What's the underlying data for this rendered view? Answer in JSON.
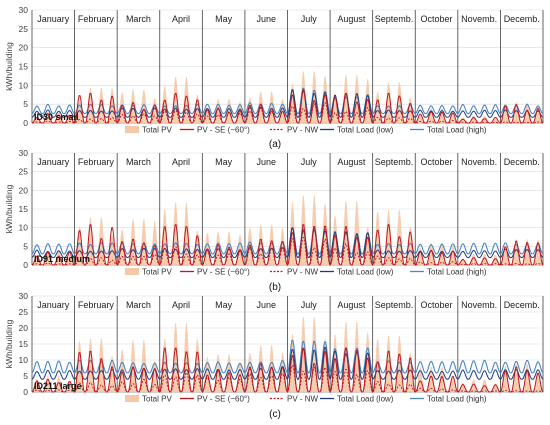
{
  "chart_data": [
    {
      "type": "line",
      "panel_label": "ID30 small",
      "caption": "(a)",
      "ylabel": "kWh/building",
      "ylim": [
        0,
        30
      ],
      "yticks": [
        0,
        5,
        10,
        15,
        20,
        25,
        30
      ],
      "grid": true,
      "legend_position": "bottom",
      "categories": [
        "January",
        "February",
        "March",
        "April",
        "May",
        "June",
        "July",
        "August",
        "Septemb.",
        "October",
        "Novemb.",
        "Decemb."
      ],
      "series": [
        {
          "name": "Total PV",
          "peaks": [
            3,
            9.5,
            9,
            12.5,
            6.5,
            8.5,
            14,
            13,
            11,
            4,
            2,
            5.5
          ]
        },
        {
          "name": "PV - SE (~60°)",
          "peaks": [
            2.5,
            8,
            5.5,
            8,
            4,
            5,
            9,
            8,
            8,
            3,
            1.5,
            5
          ]
        },
        {
          "name": "PV - NW",
          "peaks": [
            0.5,
            1.5,
            2.5,
            4,
            3,
            4,
            6,
            4.5,
            2,
            0.8,
            0.3,
            0.3
          ]
        },
        {
          "name": "Total Load (low)",
          "base": [
            1.5,
            1.5,
            1.5,
            1.5,
            1.5,
            1.5,
            1.5,
            1.5,
            1.5,
            1.5,
            1.5,
            1.5
          ],
          "peaks": [
            3.5,
            3.5,
            4,
            4,
            4,
            4.5,
            9,
            8,
            3.5,
            3.5,
            3.5,
            3.5
          ]
        },
        {
          "name": "Total Load (high)",
          "base": [
            2.5,
            2.5,
            2.5,
            2.5,
            2.5,
            2.5,
            2.5,
            2.5,
            2.5,
            2.5,
            2.5,
            2.5
          ],
          "peaks": [
            5,
            5,
            5,
            5,
            5,
            5.5,
            9.5,
            8,
            5,
            5,
            5,
            5
          ]
        }
      ]
    },
    {
      "type": "line",
      "panel_label": "ID91 medium",
      "caption": "(b)",
      "ylabel": "kWh/building",
      "ylim": [
        0,
        30
      ],
      "yticks": [
        0,
        5,
        10,
        15,
        20,
        25,
        30
      ],
      "grid": true,
      "legend_position": "bottom",
      "categories": [
        "January",
        "February",
        "March",
        "April",
        "May",
        "June",
        "July",
        "August",
        "Septemb.",
        "October",
        "Novemb.",
        "Decemb."
      ],
      "series": [
        {
          "name": "Total PV",
          "peaks": [
            4,
            13,
            12.5,
            17,
            9,
            11,
            19,
            17.5,
            15,
            6,
            3,
            7
          ]
        },
        {
          "name": "PV - SE (~60°)",
          "peaks": [
            3.5,
            11,
            7,
            11,
            5.5,
            7,
            11,
            10.5,
            11,
            4,
            2,
            6.5
          ]
        },
        {
          "name": "PV - NW",
          "peaks": [
            0.5,
            2,
            3,
            5,
            4,
            5,
            8,
            6,
            2.5,
            1,
            0.4,
            0.4
          ]
        },
        {
          "name": "Total Load (low)",
          "base": [
            2,
            2,
            2,
            2,
            2,
            2,
            2,
            2,
            2,
            2,
            2,
            2
          ],
          "peaks": [
            4,
            4,
            4.5,
            4.5,
            4.5,
            5,
            10.5,
            9,
            4,
            4,
            4,
            4.5
          ]
        },
        {
          "name": "Total Load (high)",
          "base": [
            3,
            3,
            3,
            3,
            3,
            3,
            3,
            3,
            3,
            3,
            3,
            3
          ],
          "peaks": [
            6,
            6,
            6,
            6,
            6,
            6.5,
            11,
            9.5,
            6,
            6,
            6,
            6
          ]
        }
      ]
    },
    {
      "type": "line",
      "panel_label": "ID211 large",
      "caption": "(c)",
      "ylabel": "kWh/building",
      "ylim": [
        0,
        30
      ],
      "yticks": [
        0,
        5,
        10,
        15,
        20,
        25,
        30
      ],
      "grid": true,
      "legend_position": "bottom",
      "categories": [
        "January",
        "February",
        "March",
        "April",
        "May",
        "June",
        "July",
        "August",
        "Septemb.",
        "October",
        "Novemb.",
        "Decemb."
      ],
      "series": [
        {
          "name": "Total PV",
          "peaks": [
            5,
            17,
            16.5,
            22,
            12,
            15,
            24,
            22.5,
            18,
            8,
            4,
            9
          ]
        },
        {
          "name": "PV - SE (~60°)",
          "peaks": [
            4,
            13,
            8,
            14,
            7,
            9,
            14,
            14,
            13,
            5,
            2.5,
            8
          ]
        },
        {
          "name": "PV - NW",
          "peaks": [
            0.8,
            3,
            4,
            7,
            5,
            7,
            11,
            8,
            3.5,
            1.2,
            0.5,
            0.5
          ]
        },
        {
          "name": "Total Load (low)",
          "base": [
            4,
            4,
            4,
            4,
            4,
            4,
            4,
            4,
            4,
            4,
            4,
            4
          ],
          "peaks": [
            7,
            7,
            7.5,
            7.5,
            7.5,
            8,
            15,
            13,
            7,
            7,
            7,
            7.5
          ]
        },
        {
          "name": "Total Load (high)",
          "base": [
            6,
            6,
            6,
            6,
            6,
            6,
            6,
            6,
            6,
            6,
            6,
            6
          ],
          "peaks": [
            10,
            10,
            9.5,
            9.5,
            9.5,
            10,
            18,
            15,
            10,
            10,
            10,
            10
          ]
        }
      ]
    }
  ],
  "colors": {
    "total_pv": "#f4c9a8",
    "pv_se": "#c0171c",
    "pv_nw": "#c0171c",
    "load_low": "#1f3c78",
    "load_high": "#4a86c8",
    "month_divider": "#404040",
    "grid": "#d9d9d9",
    "axis_text": "#404040"
  }
}
